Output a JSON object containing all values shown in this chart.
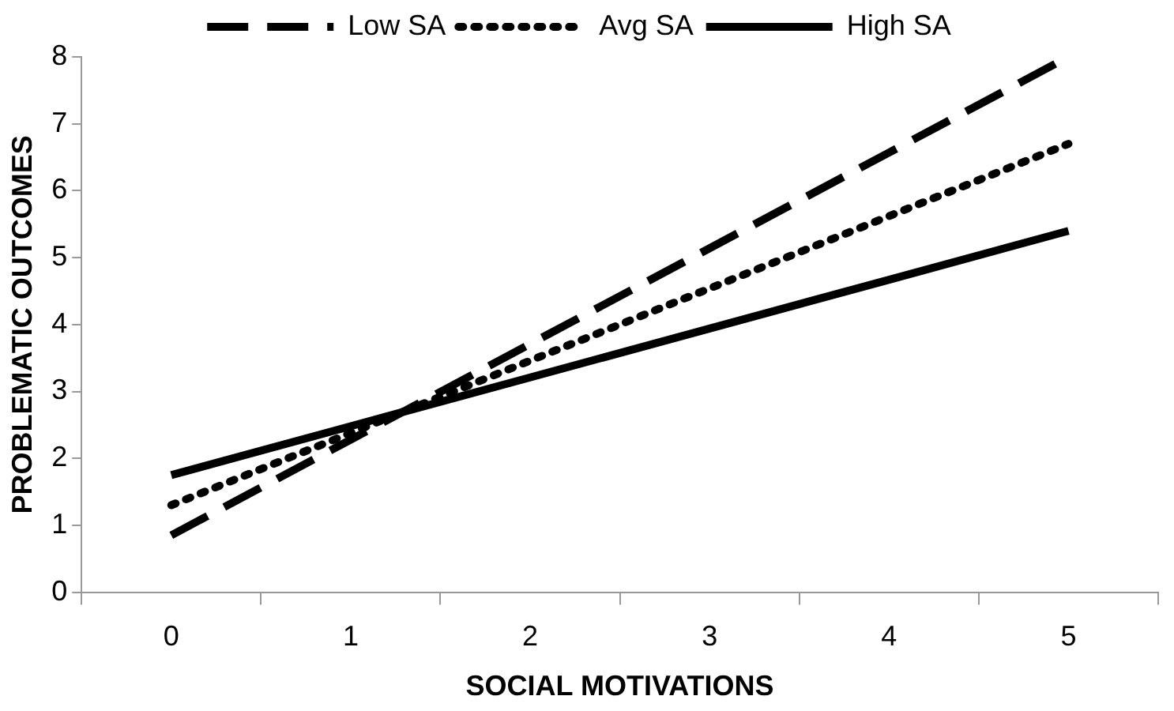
{
  "chart_data": {
    "type": "line",
    "xlabel": "SOCIAL MOTIVATIONS",
    "ylabel": "PROBLEMATIC OUTCOMES",
    "categories": [
      "0",
      "1",
      "2",
      "3",
      "4",
      "5"
    ],
    "series": [
      {
        "name": "Low SA",
        "color": "#000000",
        "line_style": "dashed",
        "values": [
          0.85,
          2.28,
          3.71,
          5.14,
          6.57,
          8.0
        ]
      },
      {
        "name": "Avg SA",
        "color": "#000000",
        "line_style": "dotted",
        "values": [
          1.3,
          2.38,
          3.46,
          4.54,
          5.62,
          6.7
        ]
      },
      {
        "name": "High SA",
        "color": "#000000",
        "line_style": "solid",
        "values": [
          1.75,
          2.48,
          3.21,
          3.94,
          4.67,
          5.4
        ]
      }
    ],
    "ylim": [
      0,
      8
    ],
    "yticks": [
      0,
      1,
      2,
      3,
      4,
      5,
      6,
      7,
      8
    ],
    "grid": false,
    "legend": "top",
    "marker": "none"
  }
}
